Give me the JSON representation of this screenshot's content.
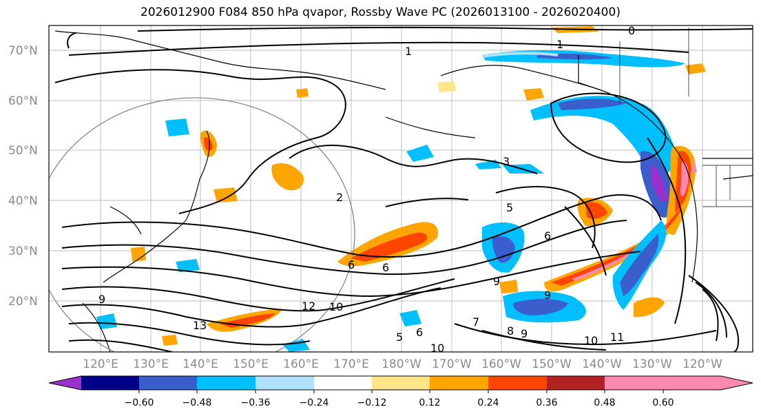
{
  "title": "2026012900 F084 850 hPa qvapor, Rossby Wave PC (2026013100 - 2026020400)",
  "map": {
    "lat_labels": [
      "70°N",
      "60°N",
      "50°N",
      "40°N",
      "30°N",
      "20°N"
    ],
    "lon_labels": [
      "120°E",
      "130°E",
      "140°E",
      "150°E",
      "160°E",
      "170°E",
      "180°W",
      "170°W",
      "160°W",
      "150°W",
      "140°W",
      "130°W",
      "120°W"
    ],
    "contour_labels": [
      "0",
      "1",
      "1",
      "2",
      "3",
      "5",
      "6",
      "6",
      "6",
      "9",
      "9",
      "9",
      "10",
      "10",
      "10",
      "11",
      "12",
      "13",
      "7",
      "8",
      "9",
      "5",
      "6"
    ]
  },
  "colorbar": {
    "colors": [
      "#9932cc",
      "#00008b",
      "#3a5fcd",
      "#00bfff",
      "#b0e2ff",
      "#ffffff",
      "#ffe48a",
      "#ffa500",
      "#ff4500",
      "#b22222",
      "#ff88b0"
    ],
    "ticks": [
      "−0.60",
      "−0.48",
      "−0.36",
      "−0.24",
      "−0.12",
      "0.12",
      "0.24",
      "0.36",
      "0.48",
      "0.60"
    ]
  }
}
